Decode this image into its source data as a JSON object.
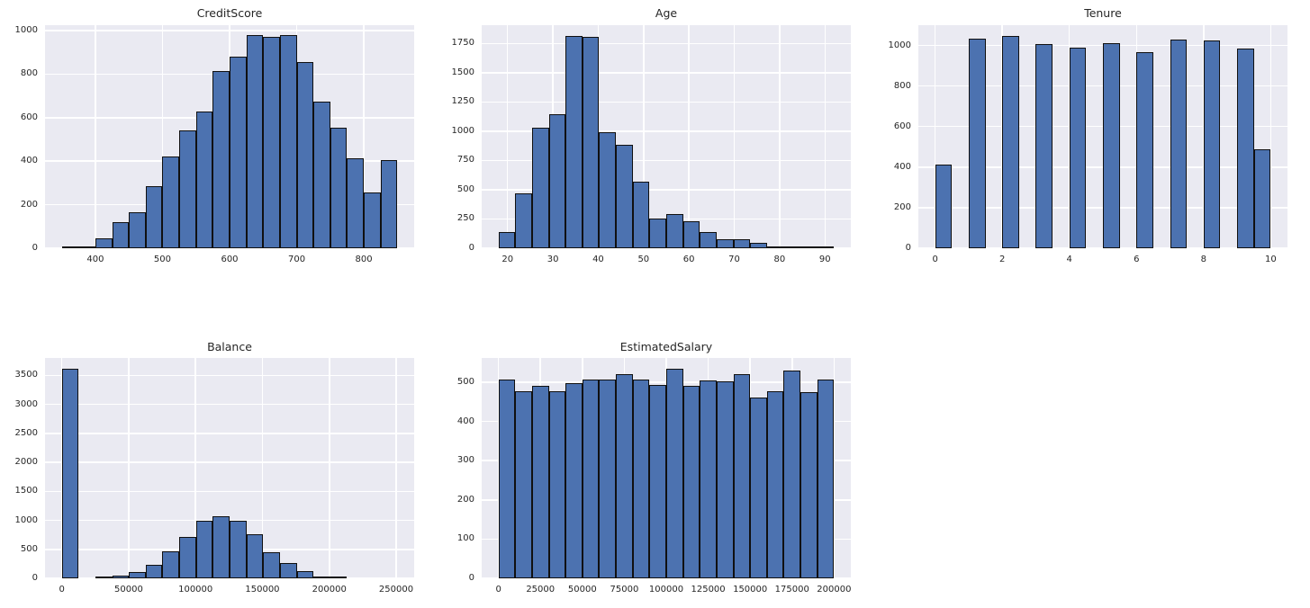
{
  "theme": {
    "figure_background": "#ffffff",
    "panel_background": "#eaeaf2",
    "grid_color": "#ffffff",
    "bar_fill": "#4c72b0",
    "bar_edge": "#101010",
    "text_color": "#262626"
  },
  "chart_data": [
    {
      "type": "bar",
      "title": "CreditScore",
      "bin_start": 350,
      "bin_width": 25,
      "values": [
        10,
        3,
        45,
        120,
        165,
        285,
        420,
        540,
        630,
        815,
        880,
        980,
        970,
        980,
        855,
        675,
        555,
        413,
        255,
        405
      ],
      "xlim": [
        325,
        875
      ],
      "ylim": [
        0,
        1025
      ],
      "xticks": [
        400,
        500,
        600,
        700,
        800
      ],
      "yticks": [
        0,
        200,
        400,
        600,
        800,
        1000
      ],
      "grid": true,
      "legend": "none",
      "xlabel": "",
      "ylabel": ""
    },
    {
      "type": "bar",
      "title": "Age",
      "bin_start": 18,
      "bin_width": 3.7,
      "values": [
        140,
        470,
        1030,
        1145,
        1815,
        1805,
        990,
        885,
        570,
        255,
        295,
        230,
        135,
        80,
        80,
        50,
        10,
        8,
        2,
        2
      ],
      "xlim": [
        14.3,
        95.7
      ],
      "ylim": [
        0,
        1906
      ],
      "xticks": [
        20,
        30,
        40,
        50,
        60,
        70,
        80,
        90
      ],
      "yticks": [
        0,
        250,
        500,
        750,
        1000,
        1250,
        1500,
        1750
      ],
      "grid": true,
      "legend": "none",
      "xlabel": "",
      "ylabel": ""
    },
    {
      "type": "bar",
      "title": "Tenure",
      "bin_start": 0,
      "bin_width": 0.5,
      "values": [
        413,
        0,
        1035,
        0,
        1048,
        0,
        1009,
        0,
        989,
        0,
        1012,
        0,
        967,
        0,
        1028,
        0,
        1025,
        0,
        984,
        490
      ],
      "xlim": [
        -0.5,
        10.5
      ],
      "ylim": [
        0,
        1100
      ],
      "xticks": [
        0,
        2,
        4,
        6,
        8,
        10
      ],
      "yticks": [
        0,
        200,
        400,
        600,
        800,
        1000
      ],
      "grid": true,
      "legend": "none",
      "xlabel": "",
      "ylabel": ""
    },
    {
      "type": "bar",
      "title": "Balance",
      "bin_start": 0,
      "bin_width": 12545,
      "values": [
        3620,
        0,
        10,
        45,
        110,
        240,
        460,
        720,
        1000,
        1070,
        1000,
        755,
        445,
        265,
        125,
        35,
        20,
        0,
        0,
        0
      ],
      "xlim": [
        -12545,
        263443
      ],
      "ylim": [
        0,
        3800
      ],
      "xticks": [
        0,
        50000,
        100000,
        150000,
        200000,
        250000
      ],
      "yticks": [
        0,
        500,
        1000,
        1500,
        2000,
        2500,
        3000,
        3500
      ],
      "grid": true,
      "legend": "none",
      "xlabel": "",
      "ylabel": ""
    },
    {
      "type": "bar",
      "title": "EstimatedSalary",
      "bin_start": 0,
      "bin_width": 10000,
      "values": [
        508,
        477,
        491,
        477,
        497,
        508,
        506,
        520,
        508,
        493,
        535,
        491,
        504,
        502,
        520,
        462,
        477,
        531,
        475,
        508
      ],
      "xlim": [
        -10000,
        210000
      ],
      "ylim": [
        0,
        562
      ],
      "xticks": [
        0,
        25000,
        50000,
        75000,
        100000,
        125000,
        150000,
        175000,
        200000
      ],
      "yticks": [
        0,
        100,
        200,
        300,
        400,
        500
      ],
      "grid": true,
      "legend": "none",
      "xlabel": "",
      "ylabel": ""
    }
  ]
}
